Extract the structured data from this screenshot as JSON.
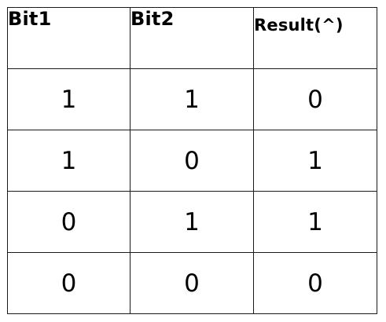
{
  "table": {
    "headers": [
      "Bit1",
      "Bit2",
      "Result(^)"
    ],
    "rows": [
      [
        "1",
        "1",
        "0"
      ],
      [
        "1",
        "0",
        "1"
      ],
      [
        "0",
        "1",
        "1"
      ],
      [
        "0",
        "0",
        "0"
      ]
    ]
  }
}
